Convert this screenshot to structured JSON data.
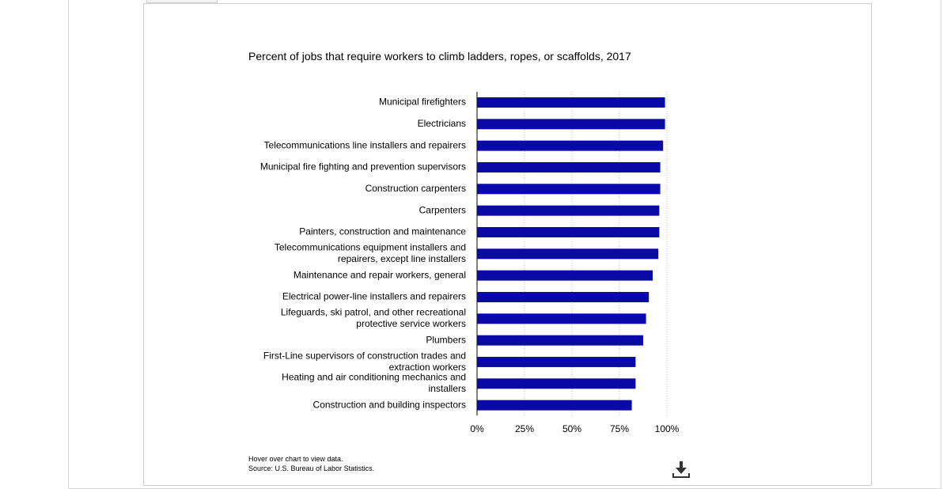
{
  "chart_data": {
    "type": "bar",
    "orientation": "horizontal",
    "title": "Percent of jobs that require workers to climb ladders, ropes, or scaffolds, 2017",
    "categories": [
      "Municipal firefighters",
      "Electricians",
      "Telecommunications line installers and repairers",
      "Municipal fire fighting and prevention supervisors",
      "Construction carpenters",
      "Carpenters",
      "Painters, construction and maintenance",
      "Telecommunications equipment installers and repairers, except line installers",
      "Maintenance and repair workers, general",
      "Electrical power-line installers and repairers",
      "Lifeguards, ski patrol, and other recreational protective service workers",
      "Plumbers",
      "First-Line supervisors of construction trades and extraction workers",
      "Heating and air conditioning mechanics and installers",
      "Construction and building inspectors"
    ],
    "category_lines": [
      [
        "Municipal firefighters"
      ],
      [
        "Electricians"
      ],
      [
        "Telecommunications line installers and repairers"
      ],
      [
        "Municipal fire fighting and prevention supervisors"
      ],
      [
        "Construction carpenters"
      ],
      [
        "Carpenters"
      ],
      [
        "Painters, construction and maintenance"
      ],
      [
        "Telecommunications equipment installers and",
        "repairers, except line installers"
      ],
      [
        "Maintenance and repair workers, general"
      ],
      [
        "Electrical power-line installers and repairers"
      ],
      [
        "Lifeguards, ski patrol, and other recreational",
        "protective service workers"
      ],
      [
        "Plumbers"
      ],
      [
        "First-Line supervisors of construction trades and",
        "extraction workers"
      ],
      [
        "Heating and air conditioning mechanics and",
        "installers"
      ],
      [
        "Construction and building inspectors"
      ]
    ],
    "values": [
      99.0,
      99.0,
      98.0,
      96.5,
      96.5,
      96.0,
      96.0,
      95.5,
      92.5,
      90.5,
      89.0,
      87.5,
      83.5,
      83.5,
      81.5
    ],
    "xlim": [
      0,
      100
    ],
    "x_ticks": [
      0,
      25,
      50,
      75,
      100
    ],
    "x_tick_labels": [
      "0%",
      "25%",
      "50%",
      "75%",
      "100%"
    ],
    "grid": true,
    "legend": "none",
    "bar_color": "#0a0aa8"
  },
  "footer": {
    "hint": "Hover over chart to view data.",
    "source": "Source: U.S. Bureau of Labor Statistics."
  },
  "icons": {
    "download": "download-icon"
  }
}
